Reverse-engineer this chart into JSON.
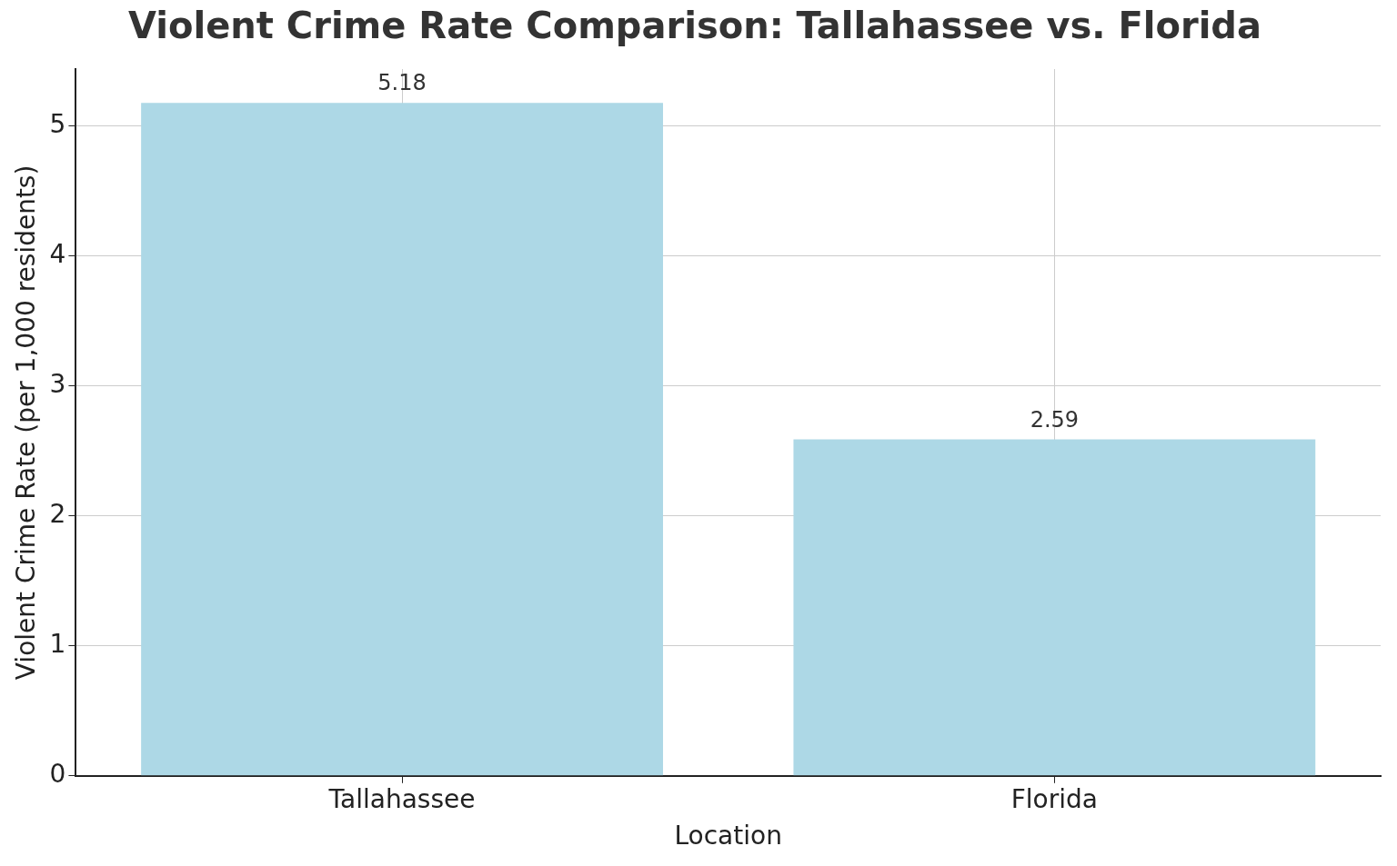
{
  "chart_data": {
    "type": "bar",
    "title": "Violent Crime Rate Comparison: Tallahassee vs. Florida",
    "xlabel": "Location",
    "ylabel": "Violent Crime Rate (per 1,000 residents)",
    "categories": [
      "Tallahassee",
      "Florida"
    ],
    "values": [
      5.18,
      2.59
    ],
    "color": "#add8e6",
    "ylim": [
      0,
      5.44
    ],
    "yticks": [
      0,
      1,
      2,
      3,
      4,
      5
    ],
    "grid": true,
    "data_labels": true,
    "legend": false
  }
}
